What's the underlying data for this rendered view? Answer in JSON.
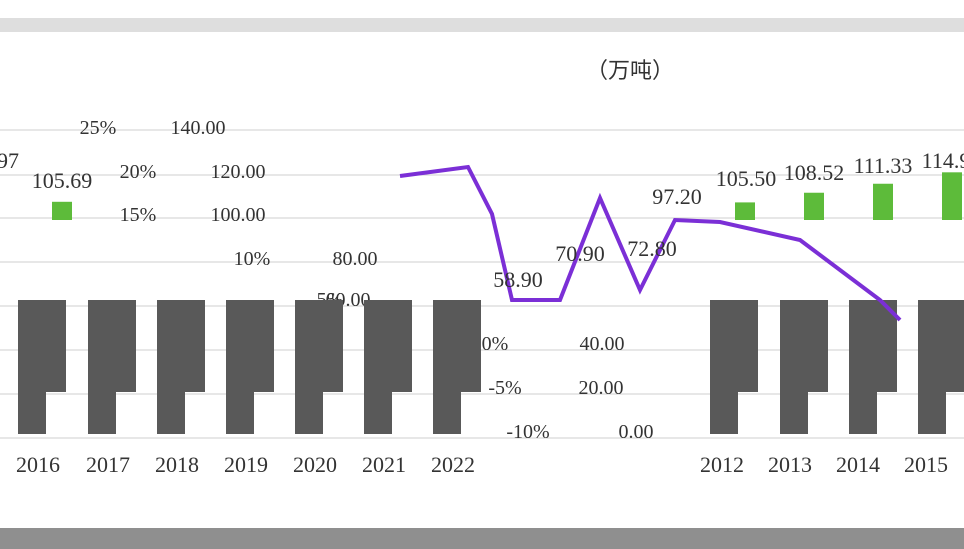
{
  "chart_data": {
    "type": "bar",
    "title": "",
    "subtitle": "（万吨）",
    "xlabel": "",
    "ylabel": "",
    "categories": [
      "2016",
      "2017",
      "2018",
      "2019",
      "2020",
      "2021",
      "2022",
      "2012",
      "2013",
      "2014",
      "2015"
    ],
    "ylim_left": [
      0,
      140
    ],
    "ylim_right": [
      -0.1,
      0.25
    ],
    "yticks_left": [
      "0.00",
      "20.00",
      "40.00",
      "60.00",
      "80.00",
      "100.00",
      "120.00",
      "140.00"
    ],
    "yticks_right": [
      "-10%",
      "-5%",
      "0%",
      "5%",
      "10%",
      "15%",
      "20%",
      "25%"
    ],
    "value_labels": [
      {
        "text": "97"
      },
      {
        "text": "105.69"
      },
      {
        "text": "58.90"
      },
      {
        "text": "70.90"
      },
      {
        "text": "72.80"
      },
      {
        "text": "97.20"
      },
      {
        "text": "105.50"
      },
      {
        "text": "108.52"
      },
      {
        "text": "111.33"
      },
      {
        "text": "114.9"
      }
    ],
    "green_bar_values": [
      105.69,
      105.5,
      108.52,
      111.33,
      114.9
    ],
    "growth_line": {
      "color": "#7b2fd6"
    },
    "colors": {
      "bar_dark": "#595959",
      "bar_green": "#5dbb3a",
      "line": "#7b2fd6",
      "band": "#8f8f8f"
    }
  }
}
